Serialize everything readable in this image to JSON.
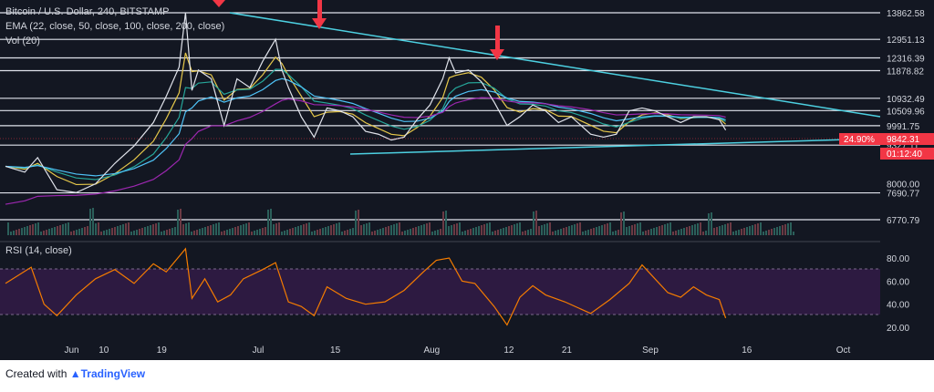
{
  "header": {
    "symbol": "Bitcoin / U.S. Dollar, 240, BITSTAMP",
    "ema_legend": "EMA (22, close, 50, close, 100, close, 200, close)",
    "vol_legend": "Vol (20)"
  },
  "rsi_legend": "RSI (14, close)",
  "footer": {
    "created_with": "Created with",
    "brand": "TradingView"
  },
  "countdown": "01:12:40",
  "percent_badge": "24.90%",
  "current_price": "9842.31",
  "colors": {
    "background": "#131722",
    "price_line": "#ffffff",
    "trend_line": "#4dd0e1",
    "arrow": "#f23645",
    "ema22": "#e6c84a",
    "ema50": "#26a69a",
    "ema100": "#4fc3f7",
    "ema200": "#9c27b0",
    "rsi_line": "#f57c00",
    "rsi_band": "#311b45",
    "badge": "#f23645"
  },
  "chart_data": [
    {
      "type": "line",
      "title": "Bitcoin / U.S. Dollar, 240, BITSTAMP",
      "x_ticks": [
        "Jun",
        "10",
        "19",
        "Jul",
        "15",
        "Aug",
        "12",
        "21",
        "Sep",
        "16",
        "Oct"
      ],
      "y_tick_labels": [
        "13862.58",
        "12951.13",
        "12316.39",
        "11878.82",
        "10932.49",
        "10509.96",
        "9991.75",
        "9842.31",
        "9327.11",
        "8000.00",
        "7690.77",
        "6770.79"
      ],
      "horizontal_levels": [
        13862.58,
        12951.13,
        12316.39,
        11878.82,
        10932.49,
        10509.96,
        9991.75,
        9327.11,
        7690.77,
        6770.79
      ],
      "ylim": [
        6600,
        14100
      ],
      "series": [
        {
          "name": "price",
          "points": [
            [
              "May 29",
              8600
            ],
            [
              "Jun 1",
              8400
            ],
            [
              "Jun 3",
              8900
            ],
            [
              "Jun 6",
              7800
            ],
            [
              "Jun 9",
              7700
            ],
            [
              "Jun 12",
              8000
            ],
            [
              "Jun 15",
              8700
            ],
            [
              "Jun 18",
              9300
            ],
            [
              "Jun 21",
              10100
            ],
            [
              "Jun 23",
              11000
            ],
            [
              "Jun 25",
              12000
            ],
            [
              "Jun 26",
              13862
            ],
            [
              "Jun 27",
              11200
            ],
            [
              "Jun 28",
              11900
            ],
            [
              "Jun 30",
              11600
            ],
            [
              "Jul 2",
              10000
            ],
            [
              "Jul 4",
              11600
            ],
            [
              "Jul 6",
              11300
            ],
            [
              "Jul 8",
              12200
            ],
            [
              "Jul 10",
              12951
            ],
            [
              "Jul 11",
              11900
            ],
            [
              "Jul 12",
              11300
            ],
            [
              "Jul 14",
              10300
            ],
            [
              "Jul 16",
              9600
            ],
            [
              "Jul 18",
              10600
            ],
            [
              "Jul 20",
              10500
            ],
            [
              "Jul 22",
              10300
            ],
            [
              "Jul 24",
              9800
            ],
            [
              "Jul 26",
              9700
            ],
            [
              "Jul 28",
              9500
            ],
            [
              "Jul 30",
              9600
            ],
            [
              "Aug 1",
              10200
            ],
            [
              "Aug 3",
              10700
            ],
            [
              "Aug 5",
              11600
            ],
            [
              "Aug 6",
              12316
            ],
            [
              "Aug 7",
              11800
            ],
            [
              "Aug 9",
              11900
            ],
            [
              "Aug 11",
              11500
            ],
            [
              "Aug 13",
              10800
            ],
            [
              "Aug 15",
              10000
            ],
            [
              "Aug 17",
              10300
            ],
            [
              "Aug 19",
              10700
            ],
            [
              "Aug 21",
              10500
            ],
            [
              "Aug 23",
              10100
            ],
            [
              "Aug 25",
              10300
            ],
            [
              "Aug 28",
              9700
            ],
            [
              "Aug 30",
              9600
            ],
            [
              "Sep 1",
              9700
            ],
            [
              "Sep 3",
              10500
            ],
            [
              "Sep 5",
              10600
            ],
            [
              "Sep 7",
              10500
            ],
            [
              "Sep 9",
              10300
            ],
            [
              "Sep 11",
              10100
            ],
            [
              "Sep 13",
              10300
            ],
            [
              "Sep 15",
              10300
            ],
            [
              "Sep 17",
              10200
            ],
            [
              "Sep 18",
              9842
            ]
          ]
        }
      ]
    },
    {
      "type": "bar",
      "title": "Vol (20)",
      "note": "volume bars beneath price panel"
    },
    {
      "type": "line",
      "title": "RSI (14, close)",
      "y_tick_labels": [
        "80.00",
        "60.00",
        "40.00",
        "20.00"
      ],
      "ylim": [
        10,
        95
      ],
      "band": [
        30,
        70
      ],
      "series": [
        {
          "name": "RSI",
          "points": [
            [
              "May 29",
              58
            ],
            [
              "Jun 2",
              72
            ],
            [
              "Jun 4",
              40
            ],
            [
              "Jun 6",
              30
            ],
            [
              "Jun 9",
              48
            ],
            [
              "Jun 12",
              62
            ],
            [
              "Jun 15",
              70
            ],
            [
              "Jun 18",
              58
            ],
            [
              "Jun 21",
              75
            ],
            [
              "Jun 23",
              68
            ],
            [
              "Jun 26",
              88
            ],
            [
              "Jun 27",
              45
            ],
            [
              "Jun 29",
              62
            ],
            [
              "Jul 1",
              42
            ],
            [
              "Jul 3",
              48
            ],
            [
              "Jul 5",
              62
            ],
            [
              "Jul 8",
              70
            ],
            [
              "Jul 10",
              76
            ],
            [
              "Jul 12",
              42
            ],
            [
              "Jul 14",
              38
            ],
            [
              "Jul 16",
              30
            ],
            [
              "Jul 18",
              55
            ],
            [
              "Jul 21",
              45
            ],
            [
              "Jul 24",
              40
            ],
            [
              "Jul 27",
              42
            ],
            [
              "Jul 30",
              52
            ],
            [
              "Aug 2",
              68
            ],
            [
              "Aug 4",
              78
            ],
            [
              "Aug 6",
              80
            ],
            [
              "Aug 8",
              60
            ],
            [
              "Aug 10",
              58
            ],
            [
              "Aug 13",
              38
            ],
            [
              "Aug 15",
              22
            ],
            [
              "Aug 17",
              46
            ],
            [
              "Aug 19",
              56
            ],
            [
              "Aug 21",
              48
            ],
            [
              "Aug 24",
              42
            ],
            [
              "Aug 28",
              32
            ],
            [
              "Aug 31",
              44
            ],
            [
              "Sep 3",
              58
            ],
            [
              "Sep 5",
              74
            ],
            [
              "Sep 7",
              62
            ],
            [
              "Sep 9",
              50
            ],
            [
              "Sep 11",
              46
            ],
            [
              "Sep 13",
              55
            ],
            [
              "Sep 15",
              48
            ],
            [
              "Sep 17",
              44
            ],
            [
              "Sep 18",
              28
            ]
          ]
        }
      ]
    }
  ]
}
